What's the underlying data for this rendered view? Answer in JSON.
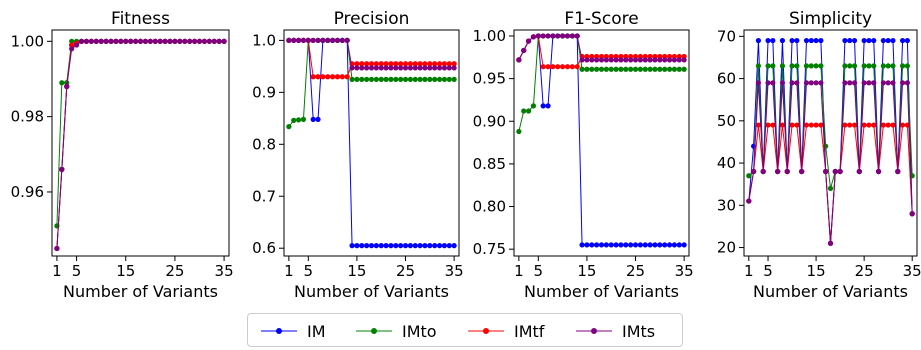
{
  "colors": {
    "IM": "#0000ff",
    "IMto": "#008000",
    "IMtf": "#ff0000",
    "IMts": "#800080"
  },
  "legend": [
    {
      "name": "IM",
      "color": "#0000ff"
    },
    {
      "name": "IMto",
      "color": "#008000"
    },
    {
      "name": "IMtf",
      "color": "#ff0000"
    },
    {
      "name": "IMts",
      "color": "#800080"
    }
  ],
  "chart_data": [
    {
      "type": "line",
      "title": "Fitness",
      "xlabel": "Number of Variants",
      "ylabel": "",
      "xlim": [
        0,
        36
      ],
      "ylim": [
        0.943,
        1.003
      ],
      "xticks": [
        1,
        5,
        15,
        25,
        35
      ],
      "yticks": [
        0.96,
        0.98,
        1.0
      ],
      "ytick_labels": [
        "0.96",
        "0.98",
        "1.00"
      ],
      "x": [
        1,
        2,
        3,
        4,
        5,
        6,
        7,
        8,
        9,
        10,
        11,
        12,
        13,
        14,
        15,
        16,
        17,
        18,
        19,
        20,
        21,
        22,
        23,
        24,
        25,
        26,
        27,
        28,
        29,
        30,
        31,
        32,
        33,
        34,
        35
      ],
      "series": [
        {
          "name": "IM",
          "values": [
            0.945,
            0.966,
            0.988,
            0.999,
            0.9995,
            1,
            1,
            1,
            1,
            1,
            1,
            1,
            1,
            1,
            1,
            1,
            1,
            1,
            1,
            1,
            1,
            1,
            1,
            1,
            1,
            1,
            1,
            1,
            1,
            1,
            1,
            1,
            1,
            1,
            1
          ]
        },
        {
          "name": "IMto",
          "values": [
            0.951,
            0.989,
            0.989,
            1,
            1,
            1,
            1,
            1,
            1,
            1,
            1,
            1,
            1,
            1,
            1,
            1,
            1,
            1,
            1,
            1,
            1,
            1,
            1,
            1,
            1,
            1,
            1,
            1,
            1,
            1,
            1,
            1,
            1,
            1,
            1
          ]
        },
        {
          "name": "IMtf",
          "values": [
            0.945,
            0.966,
            0.988,
            0.999,
            0.9995,
            1,
            1,
            1,
            1,
            1,
            1,
            1,
            1,
            1,
            1,
            1,
            1,
            1,
            1,
            1,
            1,
            1,
            1,
            1,
            1,
            1,
            1,
            1,
            1,
            1,
            1,
            1,
            1,
            1,
            1
          ]
        },
        {
          "name": "IMts",
          "values": [
            0.945,
            0.966,
            0.988,
            0.998,
            0.999,
            1,
            1,
            1,
            1,
            1,
            1,
            1,
            1,
            1,
            1,
            1,
            1,
            1,
            1,
            1,
            1,
            1,
            1,
            1,
            1,
            1,
            1,
            1,
            1,
            1,
            1,
            1,
            1,
            1,
            1
          ]
        }
      ]
    },
    {
      "type": "line",
      "title": "Precision",
      "xlabel": "Number of Variants",
      "ylabel": "",
      "xlim": [
        0,
        36
      ],
      "ylim": [
        0.585,
        1.02
      ],
      "xticks": [
        1,
        5,
        15,
        25,
        35
      ],
      "yticks": [
        0.6,
        0.7,
        0.8,
        0.9,
        1.0
      ],
      "ytick_labels": [
        "0.6",
        "0.7",
        "0.8",
        "0.9",
        "1.0"
      ],
      "x": [
        1,
        2,
        3,
        4,
        5,
        6,
        7,
        8,
        9,
        10,
        11,
        12,
        13,
        14,
        15,
        16,
        17,
        18,
        19,
        20,
        21,
        22,
        23,
        24,
        25,
        26,
        27,
        28,
        29,
        30,
        31,
        32,
        33,
        34,
        35
      ],
      "series": [
        {
          "name": "IM",
          "values": [
            1,
            1,
            1,
            1,
            1,
            0.848,
            0.848,
            1,
            1,
            1,
            1,
            1,
            1,
            0.605,
            0.605,
            0.605,
            0.605,
            0.605,
            0.605,
            0.605,
            0.605,
            0.605,
            0.605,
            0.605,
            0.605,
            0.605,
            0.605,
            0.605,
            0.605,
            0.605,
            0.605,
            0.605,
            0.605,
            0.605,
            0.605
          ]
        },
        {
          "name": "IMto",
          "values": [
            0.834,
            0.846,
            0.847,
            0.848,
            1,
            1,
            1,
            1,
            1,
            1,
            1,
            1,
            1,
            0.925,
            0.925,
            0.925,
            0.925,
            0.925,
            0.925,
            0.925,
            0.925,
            0.925,
            0.925,
            0.925,
            0.925,
            0.925,
            0.925,
            0.925,
            0.925,
            0.925,
            0.925,
            0.925,
            0.925,
            0.925,
            0.925
          ]
        },
        {
          "name": "IMtf",
          "values": [
            1,
            1,
            1,
            1,
            1,
            0.93,
            0.93,
            0.93,
            0.93,
            0.93,
            0.93,
            0.93,
            0.93,
            0.955,
            0.955,
            0.955,
            0.955,
            0.955,
            0.955,
            0.955,
            0.955,
            0.955,
            0.955,
            0.955,
            0.955,
            0.955,
            0.955,
            0.955,
            0.955,
            0.955,
            0.955,
            0.955,
            0.955,
            0.955,
            0.955
          ]
        },
        {
          "name": "IMts",
          "values": [
            1,
            1,
            1,
            1,
            1,
            1,
            1,
            1,
            1,
            1,
            1,
            1,
            1,
            0.947,
            0.947,
            0.947,
            0.947,
            0.947,
            0.947,
            0.947,
            0.947,
            0.947,
            0.947,
            0.947,
            0.947,
            0.947,
            0.947,
            0.947,
            0.947,
            0.947,
            0.947,
            0.947,
            0.947,
            0.947,
            0.947
          ]
        }
      ]
    },
    {
      "type": "line",
      "title": "F1-Score",
      "xlabel": "Number of Variants",
      "ylabel": "",
      "xlim": [
        0,
        36
      ],
      "ylim": [
        0.742,
        1.007
      ],
      "xticks": [
        1,
        5,
        15,
        25,
        35
      ],
      "yticks": [
        0.75,
        0.8,
        0.85,
        0.9,
        0.95,
        1.0
      ],
      "ytick_labels": [
        "0.75",
        "0.80",
        "0.85",
        "0.90",
        "0.95",
        "1.00"
      ],
      "x": [
        1,
        2,
        3,
        4,
        5,
        6,
        7,
        8,
        9,
        10,
        11,
        12,
        13,
        14,
        15,
        16,
        17,
        18,
        19,
        20,
        21,
        22,
        23,
        24,
        25,
        26,
        27,
        28,
        29,
        30,
        31,
        32,
        33,
        34,
        35
      ],
      "series": [
        {
          "name": "IM",
          "values": [
            0.972,
            0.983,
            0.994,
            0.999,
            1,
            0.918,
            0.918,
            1,
            1,
            1,
            1,
            1,
            1,
            0.755,
            0.755,
            0.755,
            0.755,
            0.755,
            0.755,
            0.755,
            0.755,
            0.755,
            0.755,
            0.755,
            0.755,
            0.755,
            0.755,
            0.755,
            0.755,
            0.755,
            0.755,
            0.755,
            0.755,
            0.755,
            0.755
          ]
        },
        {
          "name": "IMto",
          "values": [
            0.888,
            0.912,
            0.912,
            0.918,
            1,
            1,
            1,
            1,
            1,
            1,
            1,
            1,
            1,
            0.961,
            0.961,
            0.961,
            0.961,
            0.961,
            0.961,
            0.961,
            0.961,
            0.961,
            0.961,
            0.961,
            0.961,
            0.961,
            0.961,
            0.961,
            0.961,
            0.961,
            0.961,
            0.961,
            0.961,
            0.961,
            0.961
          ]
        },
        {
          "name": "IMtf",
          "values": [
            0.972,
            0.983,
            0.994,
            0.999,
            1,
            0.964,
            0.964,
            0.964,
            0.964,
            0.964,
            0.964,
            0.964,
            0.964,
            0.976,
            0.976,
            0.976,
            0.976,
            0.976,
            0.976,
            0.976,
            0.976,
            0.976,
            0.976,
            0.976,
            0.976,
            0.976,
            0.976,
            0.976,
            0.976,
            0.976,
            0.976,
            0.976,
            0.976,
            0.976,
            0.976
          ]
        },
        {
          "name": "IMts",
          "values": [
            0.972,
            0.983,
            0.994,
            0.999,
            1,
            1,
            1,
            1,
            1,
            1,
            1,
            1,
            1,
            0.972,
            0.972,
            0.972,
            0.972,
            0.972,
            0.972,
            0.972,
            0.972,
            0.972,
            0.972,
            0.972,
            0.972,
            0.972,
            0.972,
            0.972,
            0.972,
            0.972,
            0.972,
            0.972,
            0.972,
            0.972,
            0.972
          ]
        }
      ]
    },
    {
      "type": "line",
      "title": "Simplicity",
      "xlabel": "Number of Variants",
      "ylabel": "",
      "xlim": [
        0,
        36
      ],
      "ylim": [
        18,
        71.5
      ],
      "xticks": [
        1,
        5,
        15,
        25,
        35
      ],
      "yticks": [
        20,
        30,
        40,
        50,
        60,
        70
      ],
      "ytick_labels": [
        "20",
        "30",
        "40",
        "50",
        "60",
        "70"
      ],
      "x": [
        1,
        2,
        3,
        4,
        5,
        6,
        7,
        8,
        9,
        10,
        11,
        12,
        13,
        14,
        15,
        16,
        17,
        18,
        19,
        20,
        21,
        22,
        23,
        24,
        25,
        26,
        27,
        28,
        29,
        30,
        31,
        32,
        33,
        34,
        35
      ],
      "series": [
        {
          "name": "IM",
          "values": [
            31,
            44,
            69,
            38,
            69,
            69,
            38,
            69,
            38,
            69,
            69,
            38,
            69,
            69,
            69,
            69,
            38,
            21,
            38,
            38,
            69,
            69,
            69,
            38,
            69,
            69,
            69,
            38,
            69,
            69,
            69,
            38,
            69,
            69,
            28
          ]
        },
        {
          "name": "IMto",
          "values": [
            37,
            38,
            63,
            38,
            63,
            63,
            38,
            63,
            38,
            63,
            63,
            38,
            63,
            63,
            63,
            63,
            44,
            34,
            38,
            38,
            63,
            63,
            63,
            38,
            63,
            63,
            63,
            38,
            63,
            63,
            63,
            38,
            63,
            63,
            37
          ]
        },
        {
          "name": "IMtf",
          "values": [
            31,
            38,
            49,
            38,
            49,
            49,
            38,
            49,
            38,
            49,
            49,
            38,
            49,
            49,
            49,
            49,
            38,
            21,
            38,
            38,
            49,
            49,
            49,
            38,
            49,
            49,
            49,
            38,
            49,
            49,
            49,
            38,
            49,
            49,
            28
          ]
        },
        {
          "name": "IMts",
          "values": [
            31,
            38,
            59,
            38,
            59,
            59,
            38,
            59,
            38,
            59,
            59,
            38,
            59,
            59,
            59,
            59,
            38,
            21,
            38,
            38,
            59,
            59,
            59,
            38,
            59,
            59,
            59,
            38,
            59,
            59,
            59,
            38,
            59,
            59,
            28
          ]
        }
      ]
    }
  ]
}
